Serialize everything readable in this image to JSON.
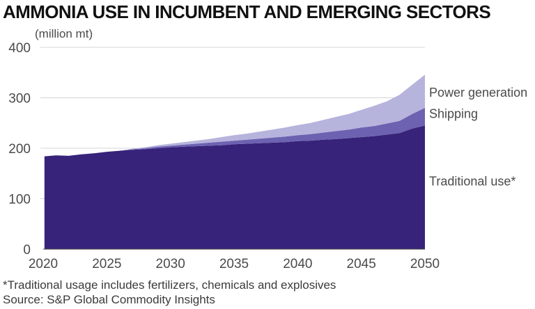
{
  "chart_data": {
    "type": "area",
    "stacked": true,
    "title": "AMMONIA USE IN INCUMBENT AND EMERGING SECTORS",
    "unit_label": "(million mt)",
    "ylim": [
      0,
      400
    ],
    "xlim": [
      2020,
      2050
    ],
    "y_ticks": [
      0,
      100,
      200,
      300,
      400
    ],
    "x_ticks": [
      2020,
      2025,
      2030,
      2035,
      2040,
      2045,
      2050
    ],
    "x_start": 2020.1,
    "grid": true,
    "x": [
      2020.1,
      2021,
      2022,
      2023,
      2024,
      2025,
      2026,
      2027,
      2028,
      2029,
      2030,
      2031,
      2032,
      2033,
      2034,
      2035,
      2036,
      2037,
      2038,
      2039,
      2040,
      2041,
      2042,
      2043,
      2044,
      2045,
      2046,
      2047,
      2048,
      2049,
      2050
    ],
    "series": [
      {
        "name": "Traditional use*",
        "color": "#38237a",
        "values": [
          184,
          186,
          185,
          188,
          190,
          193,
          195,
          197,
          198,
          200,
          202,
          203,
          204,
          205,
          206,
          208,
          209,
          210,
          211,
          212,
          214,
          215,
          217,
          218,
          220,
          222,
          224,
          227,
          230,
          239,
          245
        ]
      },
      {
        "name": "Shipping",
        "color": "#6c62b1",
        "values": [
          0,
          0,
          0,
          0,
          0,
          0,
          0,
          1,
          2,
          3,
          3,
          4,
          5,
          6,
          7,
          7,
          8,
          9,
          10,
          11,
          12,
          13,
          14,
          16,
          17,
          19,
          20,
          22,
          24,
          29,
          35
        ]
      },
      {
        "name": "Power generation",
        "color": "#b6b4dc",
        "values": [
          0,
          0,
          0,
          0,
          0,
          0,
          0,
          1,
          2,
          3,
          4,
          5,
          6,
          7,
          9,
          11,
          12,
          14,
          16,
          18,
          20,
          22,
          25,
          28,
          31,
          35,
          40,
          44,
          52,
          58,
          66
        ]
      }
    ]
  },
  "footnotes": {
    "line1": "*Traditional usage includes fertilizers, chemicals and explosives",
    "line2": "Source: S&P Global Commodity Insights"
  }
}
